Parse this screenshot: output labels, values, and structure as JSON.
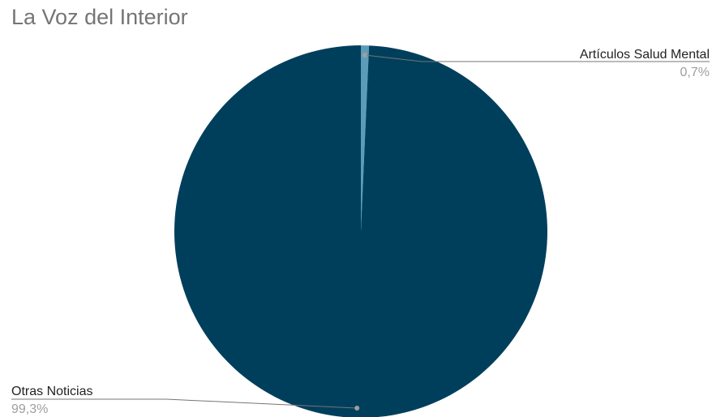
{
  "chart_data": {
    "type": "pie",
    "title": "La Voz del Interior",
    "slices": [
      {
        "label": "Artículos Salud Mental",
        "value": 0.7,
        "value_label": "0,7%",
        "color": "#5d9cb8"
      },
      {
        "label": "Otras Noticias",
        "value": 99.3,
        "value_label": "99,3%",
        "color": "#003f5c"
      }
    ],
    "legend": "none",
    "leader_line_color": "#757575"
  }
}
